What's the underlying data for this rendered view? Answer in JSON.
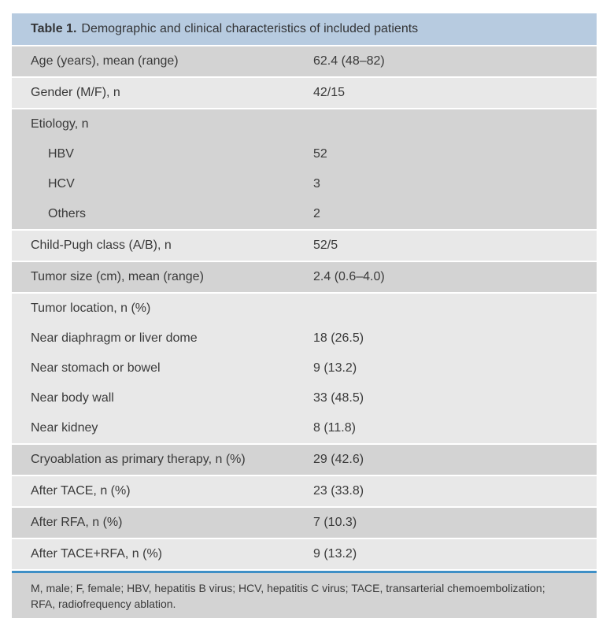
{
  "table": {
    "title_label": "Table 1.",
    "title_text": "Demographic and clinical characteristics of included patients",
    "blocks": [
      {
        "shade": "dark",
        "rows": [
          {
            "label": "Age (years), mean (range)",
            "value": "62.4 (48–82)",
            "indent": false
          }
        ]
      },
      {
        "shade": "light",
        "rows": [
          {
            "label": "Gender (M/F), n",
            "value": "42/15",
            "indent": false
          }
        ]
      },
      {
        "shade": "dark",
        "rows": [
          {
            "label": "Etiology, n",
            "value": "",
            "indent": false
          },
          {
            "label": "HBV",
            "value": "52",
            "indent": true
          },
          {
            "label": "HCV",
            "value": "3",
            "indent": true
          },
          {
            "label": "Others",
            "value": "2",
            "indent": true
          }
        ]
      },
      {
        "shade": "light",
        "rows": [
          {
            "label": "Child-Pugh class (A/B), n",
            "value": "52/5",
            "indent": false
          }
        ]
      },
      {
        "shade": "dark",
        "rows": [
          {
            "label": "Tumor size (cm), mean (range)",
            "value": "2.4 (0.6–4.0)",
            "indent": false
          }
        ]
      },
      {
        "shade": "light",
        "rows": [
          {
            "label": "Tumor location, n (%)",
            "value": "",
            "indent": false
          },
          {
            "label": "Near diaphragm or liver dome",
            "value": "18 (26.5)",
            "indent": false
          },
          {
            "label": "Near stomach or bowel",
            "value": "9 (13.2)",
            "indent": false
          },
          {
            "label": "Near body wall",
            "value": "33 (48.5)",
            "indent": false
          },
          {
            "label": "Near kidney",
            "value": "8 (11.8)",
            "indent": false
          }
        ]
      },
      {
        "shade": "dark",
        "rows": [
          {
            "label": "Cryoablation as primary therapy, n (%)",
            "value": "29 (42.6)",
            "indent": false
          }
        ]
      },
      {
        "shade": "light",
        "rows": [
          {
            "label": "After TACE, n (%)",
            "value": "23 (33.8)",
            "indent": false
          }
        ]
      },
      {
        "shade": "dark",
        "rows": [
          {
            "label": "After RFA, n (%)",
            "value": "7 (10.3)",
            "indent": false
          }
        ]
      },
      {
        "shade": "light",
        "rows": [
          {
            "label": "After TACE+RFA, n (%)",
            "value": "9 (13.2)",
            "indent": false
          }
        ]
      }
    ],
    "footnote": "M, male; F, female; HBV, hepatitis B virus; HCV, hepatitis C virus; TACE, transarterial chemoembolization; RFA, radiofrequency ablation.",
    "colors": {
      "header_bg": "#b7cbe0",
      "row_dark": "#d3d3d3",
      "row_light": "#e8e8e8",
      "footnote_bg": "#d3d3d3",
      "rule_blue": "#3e8fc6",
      "text": "#3a3a3a"
    }
  }
}
